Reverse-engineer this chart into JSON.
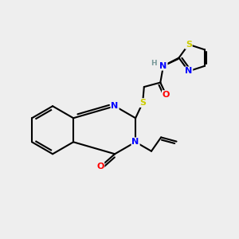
{
  "background_color": "#eeeeee",
  "bond_color": "#000000",
  "atom_colors": {
    "N": "#0000ff",
    "O": "#ff0000",
    "S": "#cccc00",
    "H": "#7a9a9a",
    "C": "#000000"
  },
  "figsize": [
    3.0,
    3.0
  ],
  "dpi": 100,
  "lw": 1.5,
  "fs": 8.0,
  "fs_small": 6.5
}
